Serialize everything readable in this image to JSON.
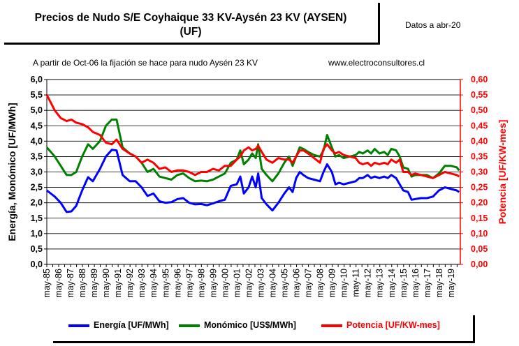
{
  "header": {
    "title_line1": "Precios de Nudo S/E Coyhaique 33 KV-Aysén 23 KV (AYSEN)",
    "title_line2": "(UF)",
    "date_note": "Datos a abr-20",
    "note_left": "A partir de Oct-06 la fijación se hace para nudo Aysén 23 KV",
    "note_right": "www.electroconsultores.cl"
  },
  "colors": {
    "energia": "#0000ff",
    "monomico": "#008000",
    "potencia": "#ff0000"
  },
  "chart_data": {
    "type": "line",
    "title": "Precios de Nudo S/E Coyhaique 33 KV-Aysén 23 KV (AYSEN) (UF)",
    "xlabel": "",
    "ylabel": "Energía, Monómico [UF/MWh]",
    "y2label": "Potencia [UF/KW-mes]",
    "ylim": [
      0,
      6
    ],
    "y2lim": [
      0,
      0.6
    ],
    "y_ticks": [
      "0,0",
      "0,5",
      "1,0",
      "1,5",
      "2,0",
      "2,5",
      "3,0",
      "3,5",
      "4,0",
      "4,5",
      "5,0",
      "5,5",
      "6,0"
    ],
    "y2_ticks": [
      "0,00",
      "0,05",
      "0,10",
      "0,15",
      "0,20",
      "0,25",
      "0,30",
      "0,35",
      "0,40",
      "0,45",
      "0,50",
      "0,55",
      "0,60"
    ],
    "categories": [
      "may-85",
      "may-86",
      "may-87",
      "may-88",
      "may-89",
      "may-90",
      "may-91",
      "may-92",
      "may-93",
      "may-94",
      "may-95",
      "may-96",
      "may-97",
      "may-98",
      "may-99",
      "may-00",
      "may-01",
      "may-02",
      "may-03",
      "may-04",
      "may-05",
      "may-06",
      "may-07",
      "may-08",
      "may-09",
      "may-10",
      "may-11",
      "may-12",
      "may-13",
      "may-14",
      "may-15",
      "may-16",
      "may-17",
      "may-18",
      "may-19"
    ],
    "grid": true,
    "legend_position": "bottom",
    "series": [
      {
        "name": "Energía [UF/MWh]",
        "axis": "left",
        "x": [
          1985.33,
          1986.0,
          1986.5,
          1987.0,
          1987.4,
          1987.8,
          1988.3,
          1988.8,
          1989.2,
          1989.8,
          1990.3,
          1990.8,
          1991.2,
          1991.7,
          1992.3,
          1992.8,
          1993.3,
          1993.8,
          1994.3,
          1994.8,
          1995.3,
          1995.8,
          1996.3,
          1996.8,
          1997.3,
          1997.8,
          1998.3,
          1998.8,
          1999.3,
          1999.8,
          2000.3,
          2000.8,
          2001.3,
          2001.6,
          2001.9,
          2002.3,
          2002.6,
          2002.9,
          2003.1,
          2003.4,
          2003.8,
          2004.3,
          2004.8,
          2005.3,
          2005.7,
          2006.0,
          2006.3,
          2006.6,
          2006.9,
          2007.3,
          2007.8,
          2008.3,
          2008.6,
          2008.9,
          2009.3,
          2009.6,
          2009.9,
          2010.3,
          2010.8,
          2011.3,
          2011.6,
          2011.9,
          2012.3,
          2012.6,
          2012.9,
          2013.3,
          2013.7,
          2014.0,
          2014.3,
          2014.7,
          2015.0,
          2015.3,
          2015.7,
          2016.0,
          2016.3,
          2016.8,
          2017.3,
          2017.8,
          2018.3,
          2018.8,
          2019.3,
          2019.8,
          2020.0
        ],
        "y": [
          2.4,
          2.2,
          2.0,
          1.7,
          1.72,
          1.9,
          2.4,
          2.83,
          2.7,
          3.1,
          3.5,
          3.72,
          3.7,
          2.9,
          2.7,
          2.7,
          2.5,
          2.22,
          2.3,
          2.05,
          2.0,
          2.02,
          2.12,
          2.15,
          2.0,
          1.95,
          1.96,
          1.92,
          1.98,
          2.05,
          2.1,
          2.55,
          2.6,
          2.85,
          2.3,
          2.5,
          2.85,
          2.5,
          2.95,
          2.15,
          1.95,
          1.75,
          2.0,
          2.3,
          2.5,
          2.35,
          2.8,
          3.0,
          2.9,
          2.8,
          2.75,
          2.7,
          3.0,
          3.25,
          3.0,
          2.6,
          2.65,
          2.6,
          2.65,
          2.7,
          2.8,
          2.8,
          2.9,
          2.8,
          2.85,
          2.8,
          2.85,
          2.8,
          2.9,
          2.8,
          2.6,
          2.4,
          2.35,
          2.1,
          2.12,
          2.15,
          2.15,
          2.2,
          2.4,
          2.5,
          2.45,
          2.4,
          2.35
        ]
      },
      {
        "name": "Monómico [US$/MWh]",
        "axis": "left",
        "x": [
          1985.33,
          1986.0,
          1986.5,
          1987.0,
          1987.4,
          1987.8,
          1988.3,
          1988.8,
          1989.2,
          1989.8,
          1990.3,
          1990.8,
          1991.2,
          1991.7,
          1992.3,
          1992.8,
          1993.3,
          1993.8,
          1994.3,
          1994.8,
          1995.3,
          1995.8,
          1996.3,
          1996.8,
          1997.3,
          1997.8,
          1998.3,
          1998.8,
          1999.3,
          1999.8,
          2000.3,
          2000.8,
          2001.3,
          2001.6,
          2001.9,
          2002.3,
          2002.6,
          2002.9,
          2003.1,
          2003.4,
          2003.8,
          2004.3,
          2004.8,
          2005.3,
          2005.7,
          2006.0,
          2006.3,
          2006.6,
          2006.9,
          2007.3,
          2007.8,
          2008.3,
          2008.6,
          2008.9,
          2009.3,
          2009.6,
          2009.9,
          2010.3,
          2010.8,
          2011.3,
          2011.6,
          2011.9,
          2012.3,
          2012.6,
          2012.9,
          2013.3,
          2013.7,
          2014.0,
          2014.3,
          2014.7,
          2015.0,
          2015.3,
          2015.7,
          2016.0,
          2016.3,
          2016.8,
          2017.3,
          2017.8,
          2018.3,
          2018.8,
          2019.3,
          2019.8,
          2020.0
        ],
        "y": [
          3.8,
          3.5,
          3.2,
          2.9,
          2.9,
          3.0,
          3.5,
          3.9,
          3.75,
          4.0,
          4.5,
          4.7,
          4.7,
          3.8,
          3.6,
          3.5,
          3.3,
          3.0,
          3.1,
          2.85,
          2.8,
          2.75,
          2.9,
          2.95,
          2.8,
          2.7,
          2.72,
          2.7,
          2.75,
          2.85,
          2.95,
          3.3,
          3.4,
          3.7,
          3.25,
          3.4,
          3.6,
          3.45,
          3.9,
          3.1,
          2.9,
          2.7,
          2.95,
          3.3,
          3.5,
          3.2,
          3.5,
          3.8,
          3.75,
          3.65,
          3.55,
          3.5,
          3.7,
          4.2,
          3.8,
          3.5,
          3.55,
          3.45,
          3.5,
          3.55,
          3.65,
          3.6,
          3.7,
          3.6,
          3.75,
          3.6,
          3.65,
          3.55,
          3.75,
          3.7,
          3.5,
          3.15,
          3.1,
          2.85,
          2.9,
          2.9,
          2.9,
          2.8,
          2.95,
          3.2,
          3.2,
          3.15,
          3.05
        ]
      },
      {
        "name": "Potencia [UF/KW-mes]",
        "axis": "right",
        "x": [
          1985.33,
          1986.0,
          1986.5,
          1987.0,
          1987.4,
          1987.8,
          1988.3,
          1988.8,
          1989.2,
          1989.8,
          1990.3,
          1990.8,
          1991.2,
          1991.7,
          1992.3,
          1992.8,
          1993.3,
          1993.8,
          1994.3,
          1994.8,
          1995.3,
          1995.8,
          1996.3,
          1996.8,
          1997.3,
          1997.8,
          1998.3,
          1998.8,
          1999.3,
          1999.8,
          2000.3,
          2000.8,
          2001.3,
          2001.6,
          2001.9,
          2002.3,
          2002.6,
          2002.9,
          2003.1,
          2003.4,
          2003.8,
          2004.3,
          2004.8,
          2005.3,
          2005.7,
          2006.0,
          2006.3,
          2006.6,
          2006.9,
          2007.3,
          2007.8,
          2008.3,
          2008.6,
          2008.9,
          2009.3,
          2009.6,
          2009.9,
          2010.3,
          2010.8,
          2011.3,
          2011.6,
          2011.9,
          2012.3,
          2012.6,
          2012.9,
          2013.3,
          2013.7,
          2014.0,
          2014.3,
          2014.7,
          2015.0,
          2015.3,
          2015.7,
          2016.0,
          2016.3,
          2016.8,
          2017.3,
          2017.8,
          2018.3,
          2018.8,
          2019.3,
          2019.8,
          2020.0
        ],
        "y": [
          0.55,
          0.5,
          0.475,
          0.465,
          0.47,
          0.46,
          0.455,
          0.445,
          0.43,
          0.42,
          0.395,
          0.39,
          0.405,
          0.375,
          0.36,
          0.35,
          0.33,
          0.34,
          0.33,
          0.31,
          0.315,
          0.3,
          0.305,
          0.305,
          0.3,
          0.29,
          0.3,
          0.3,
          0.31,
          0.305,
          0.32,
          0.32,
          0.34,
          0.35,
          0.37,
          0.38,
          0.37,
          0.375,
          0.385,
          0.365,
          0.34,
          0.33,
          0.345,
          0.34,
          0.34,
          0.33,
          0.35,
          0.37,
          0.37,
          0.36,
          0.345,
          0.33,
          0.375,
          0.39,
          0.37,
          0.36,
          0.365,
          0.355,
          0.35,
          0.345,
          0.33,
          0.325,
          0.33,
          0.32,
          0.33,
          0.325,
          0.33,
          0.325,
          0.34,
          0.33,
          0.34,
          0.3,
          0.3,
          0.29,
          0.295,
          0.29,
          0.285,
          0.28,
          0.29,
          0.3,
          0.295,
          0.29,
          0.285
        ]
      }
    ]
  },
  "legend": {
    "energia": "Energía [UF/MWh]",
    "monomico": "Monómico [US$/MWh]",
    "potencia": "Potencia [UF/KW-mes]"
  }
}
